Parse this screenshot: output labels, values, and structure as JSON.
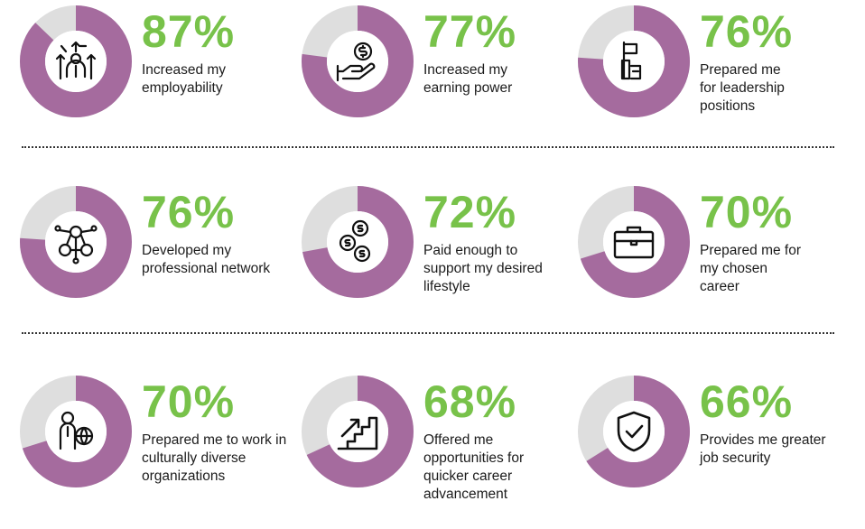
{
  "colors": {
    "ring_filled": "#a56b9e",
    "ring_empty": "#dedede",
    "percent_text": "#78c24a"
  },
  "chart_data": {
    "type": "donut-grid",
    "items": [
      {
        "value": 87,
        "label_text": "87%",
        "description": "Increased my employability",
        "icon": "career-growth-person-icon"
      },
      {
        "value": 77,
        "label_text": "77%",
        "description": "Increased my earning power",
        "icon": "hand-coin-icon"
      },
      {
        "value": 76,
        "label_text": "76%",
        "description": "Prepared me for leadership positions",
        "icon": "flag-climb-icon"
      },
      {
        "value": 76,
        "label_text": "76%",
        "description": "Developed my professional network",
        "icon": "network-people-icon"
      },
      {
        "value": 72,
        "label_text": "72%",
        "description": "Paid enough to support my desired lifestyle",
        "icon": "stacked-coins-icon"
      },
      {
        "value": 70,
        "label_text": "70%",
        "description": "Prepared me for my chosen career",
        "icon": "briefcase-icon"
      },
      {
        "value": 70,
        "label_text": "70%",
        "description": "Prepared me to work in culturally diverse organizations",
        "icon": "person-globe-icon"
      },
      {
        "value": 68,
        "label_text": "68%",
        "description": "Offered me opportunities for quicker career advancement",
        "icon": "stairs-arrow-icon"
      },
      {
        "value": 66,
        "label_text": "66%",
        "description": "Provides me greater job security",
        "icon": "shield-check-icon"
      }
    ]
  }
}
